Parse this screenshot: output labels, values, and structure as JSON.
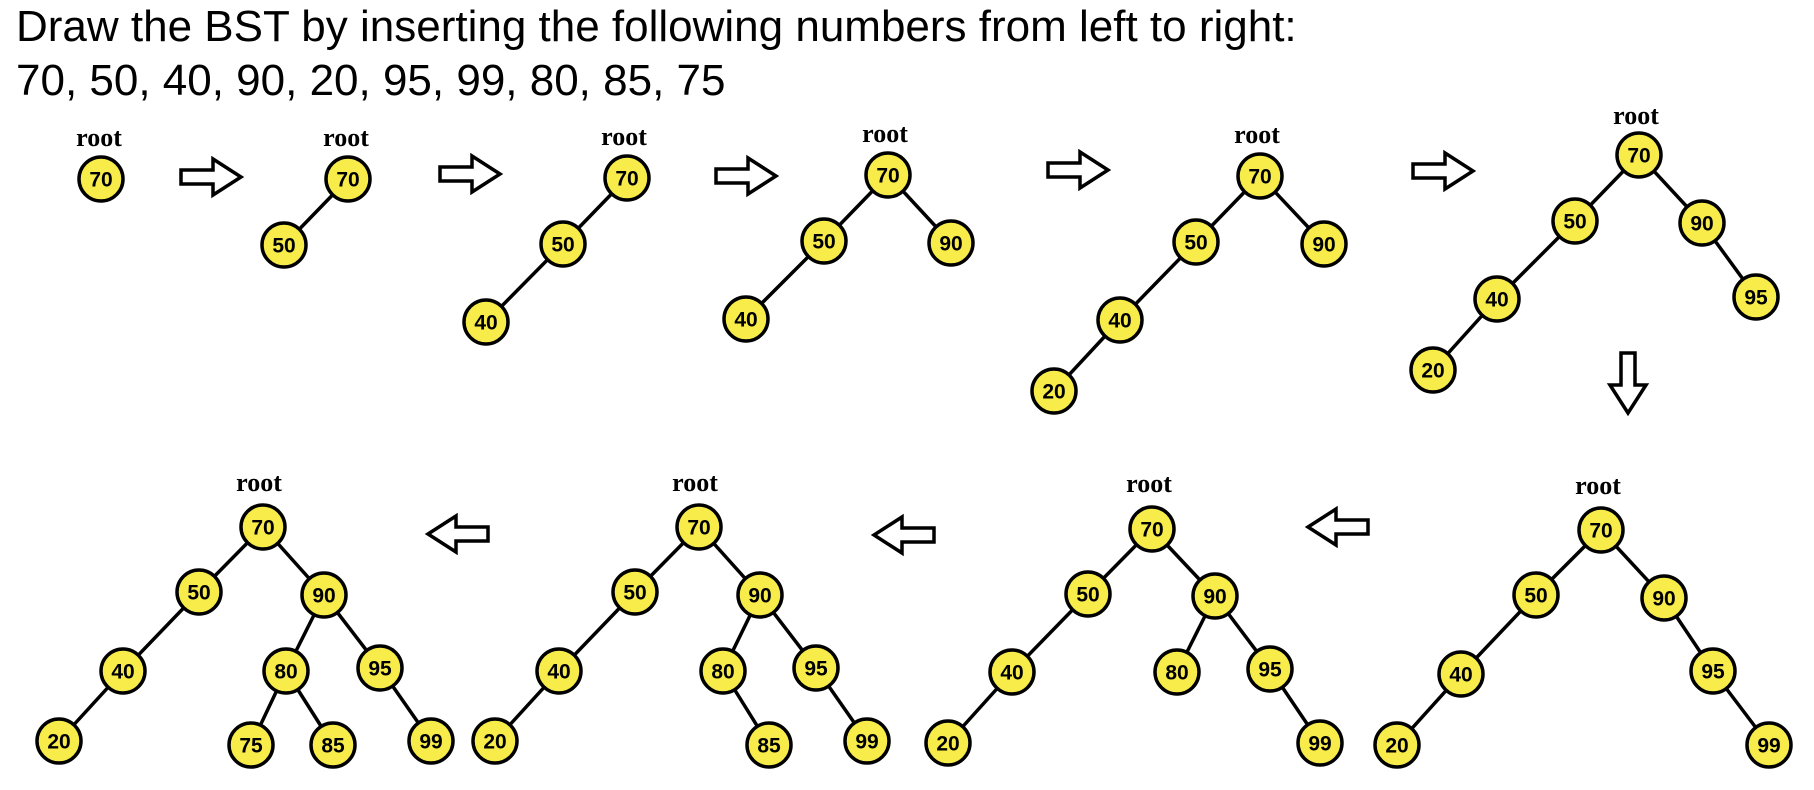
{
  "title": {
    "line1": "Draw the BST by inserting the following numbers from left to right:",
    "line2": "70, 50, 40, 90, 20, 95, 99, 80, 85, 75"
  },
  "root_label": "root",
  "colors": {
    "node_fill": "#f7ec4a",
    "stroke": "#000000",
    "background": "#ffffff"
  },
  "insert_sequence": [
    70,
    50,
    40,
    90,
    20,
    95,
    99,
    80,
    85,
    75
  ],
  "steps": [
    {
      "step": 1,
      "nodes": [
        70
      ],
      "edges": []
    },
    {
      "step": 2,
      "nodes": [
        70,
        50
      ],
      "edges": [
        [
          70,
          50
        ]
      ]
    },
    {
      "step": 3,
      "nodes": [
        70,
        50,
        40
      ],
      "edges": [
        [
          70,
          50
        ],
        [
          50,
          40
        ]
      ]
    },
    {
      "step": 4,
      "nodes": [
        70,
        50,
        90,
        40
      ],
      "edges": [
        [
          70,
          50
        ],
        [
          70,
          90
        ],
        [
          50,
          40
        ]
      ]
    },
    {
      "step": 5,
      "nodes": [
        70,
        50,
        90,
        40,
        20
      ],
      "edges": [
        [
          70,
          50
        ],
        [
          70,
          90
        ],
        [
          50,
          40
        ],
        [
          40,
          20
        ]
      ]
    },
    {
      "step": 6,
      "nodes": [
        70,
        50,
        90,
        40,
        95,
        20
      ],
      "edges": [
        [
          70,
          50
        ],
        [
          70,
          90
        ],
        [
          50,
          40
        ],
        [
          90,
          95
        ],
        [
          40,
          20
        ]
      ]
    },
    {
      "step": 7,
      "nodes": [
        70,
        50,
        90,
        40,
        95,
        20,
        99
      ],
      "edges": [
        [
          70,
          50
        ],
        [
          70,
          90
        ],
        [
          50,
          40
        ],
        [
          90,
          95
        ],
        [
          40,
          20
        ],
        [
          95,
          99
        ]
      ]
    },
    {
      "step": 8,
      "nodes": [
        70,
        50,
        90,
        40,
        80,
        95,
        20,
        99
      ],
      "edges": [
        [
          70,
          50
        ],
        [
          70,
          90
        ],
        [
          50,
          40
        ],
        [
          90,
          80
        ],
        [
          90,
          95
        ],
        [
          40,
          20
        ],
        [
          95,
          99
        ]
      ]
    },
    {
      "step": 9,
      "nodes": [
        70,
        50,
        90,
        40,
        80,
        95,
        20,
        85,
        99
      ],
      "edges": [
        [
          70,
          50
        ],
        [
          70,
          90
        ],
        [
          50,
          40
        ],
        [
          90,
          80
        ],
        [
          90,
          95
        ],
        [
          40,
          20
        ],
        [
          80,
          85
        ],
        [
          95,
          99
        ]
      ]
    },
    {
      "step": 10,
      "nodes": [
        70,
        50,
        90,
        40,
        80,
        95,
        20,
        75,
        85,
        99
      ],
      "edges": [
        [
          70,
          50
        ],
        [
          70,
          90
        ],
        [
          50,
          40
        ],
        [
          90,
          80
        ],
        [
          90,
          95
        ],
        [
          40,
          20
        ],
        [
          80,
          75
        ],
        [
          80,
          85
        ],
        [
          95,
          99
        ]
      ]
    }
  ],
  "arrows": [
    {
      "direction": "right",
      "from_step": 1,
      "to_step": 2
    },
    {
      "direction": "right",
      "from_step": 2,
      "to_step": 3
    },
    {
      "direction": "right",
      "from_step": 3,
      "to_step": 4
    },
    {
      "direction": "right",
      "from_step": 4,
      "to_step": 5
    },
    {
      "direction": "right",
      "from_step": 5,
      "to_step": 6
    },
    {
      "direction": "down",
      "from_step": 6,
      "to_step": 7
    },
    {
      "direction": "left",
      "from_step": 7,
      "to_step": 8
    },
    {
      "direction": "left",
      "from_step": 8,
      "to_step": 9
    },
    {
      "direction": "left",
      "from_step": 9,
      "to_step": 10
    }
  ]
}
